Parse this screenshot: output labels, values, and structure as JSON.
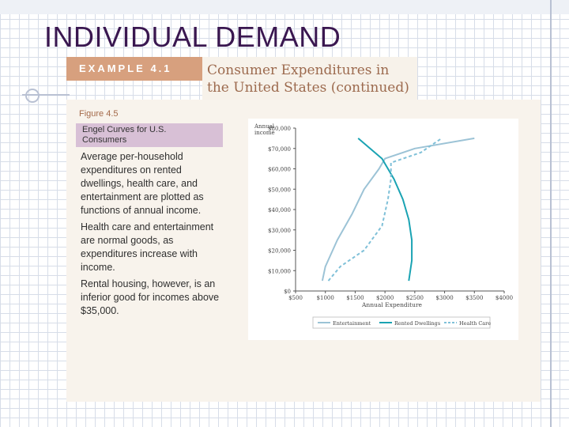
{
  "slide": {
    "title": "INDIVIDUAL DEMAND"
  },
  "example": {
    "label": "EXAMPLE 4.1",
    "heading_line1": "Consumer Expenditures in",
    "heading_line2": "the United States (continued)"
  },
  "figure": {
    "label": "Figure 4.5",
    "caption_line1": "Engel Curves for U.S.",
    "caption_line2": "Consumers"
  },
  "description": {
    "p1": "Average per-household expenditures on rented dwellings, health care, and entertainment are plotted as functions of annual income.",
    "p2": "Health care and entertainment are normal goods, as expenditures increase with income.",
    "p3": "Rental housing, however, is an inferior good for incomes above $35,000."
  },
  "colors": {
    "entertainment": "#9cc3d6",
    "rented_dwellings": "#1aa3b3",
    "health_care": "#7fc0d8"
  },
  "chart_data": {
    "type": "line",
    "title": "",
    "xlabel": "Annual Expenditure",
    "ylabel": "Annual income",
    "xlim": [
      500,
      4000
    ],
    "ylim": [
      0,
      80000
    ],
    "x_ticks": [
      "$500",
      "$1000",
      "$1500",
      "$2000",
      "$2500",
      "$3000",
      "$3500",
      "$4000"
    ],
    "y_ticks": [
      "$0",
      "$10,000",
      "$20,000",
      "$30,000",
      "$40,000",
      "$50,000",
      "$60,000",
      "$70,000",
      "$80,000"
    ],
    "grid": false,
    "legend_position": "bottom",
    "series": [
      {
        "name": "Entertainment",
        "style": "solid",
        "points": [
          [
            950,
            5000
          ],
          [
            1000,
            12000
          ],
          [
            1200,
            25000
          ],
          [
            1450,
            38000
          ],
          [
            1650,
            50000
          ],
          [
            1900,
            60000
          ],
          [
            2000,
            65000
          ],
          [
            2500,
            70000
          ],
          [
            3500,
            75000
          ]
        ]
      },
      {
        "name": "Rented Dwellings",
        "style": "solid",
        "points": [
          [
            2400,
            5000
          ],
          [
            2450,
            15000
          ],
          [
            2450,
            25000
          ],
          [
            2400,
            35000
          ],
          [
            2300,
            45000
          ],
          [
            2150,
            55000
          ],
          [
            1950,
            65000
          ],
          [
            1550,
            75000
          ]
        ]
      },
      {
        "name": "Health Care",
        "style": "dashed",
        "points": [
          [
            1050,
            5000
          ],
          [
            1250,
            12000
          ],
          [
            1650,
            20000
          ],
          [
            1950,
            32000
          ],
          [
            2050,
            45000
          ],
          [
            2100,
            55000
          ],
          [
            2100,
            63000
          ],
          [
            2600,
            68000
          ],
          [
            2950,
            75000
          ]
        ]
      }
    ]
  }
}
